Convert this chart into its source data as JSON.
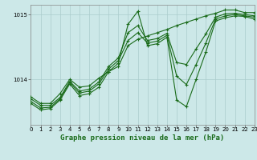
{
  "xlabel": "Graphe pression niveau de la mer (hPa)",
  "bg_color": "#cce8e8",
  "grid_color": "#aacccc",
  "line_color": "#1a6b1a",
  "ylim": [
    1013.3,
    1015.15
  ],
  "yticks": [
    1014,
    1015
  ],
  "xlim": [
    0,
    23
  ],
  "xticks": [
    0,
    1,
    2,
    3,
    4,
    5,
    6,
    7,
    8,
    9,
    10,
    11,
    12,
    13,
    14,
    15,
    16,
    17,
    18,
    19,
    20,
    21,
    22,
    23
  ],
  "series": [
    [
      1013.73,
      1013.63,
      1013.63,
      1013.78,
      1014.0,
      1013.88,
      1013.9,
      1014.02,
      1014.12,
      1014.2,
      1014.52,
      1014.62,
      1014.67,
      1014.72,
      1014.77,
      1014.83,
      1014.88,
      1014.93,
      1014.98,
      1015.02,
      1015.07,
      1015.07,
      1015.03,
      1015.03
    ],
    [
      1013.63,
      1013.53,
      1013.55,
      1013.68,
      1013.93,
      1013.75,
      1013.78,
      1013.88,
      1014.12,
      1014.25,
      1014.85,
      1015.05,
      1014.52,
      1014.55,
      1014.65,
      1013.68,
      1013.58,
      1014.0,
      1014.42,
      1014.9,
      1014.95,
      1014.98,
      1014.97,
      1014.93
    ],
    [
      1013.7,
      1013.6,
      1013.6,
      1013.72,
      1013.97,
      1013.82,
      1013.85,
      1013.96,
      1014.2,
      1014.33,
      1014.72,
      1014.83,
      1014.6,
      1014.63,
      1014.71,
      1014.26,
      1014.23,
      1014.47,
      1014.7,
      1014.96,
      1015.01,
      1015.02,
      1015.0,
      1014.98
    ],
    [
      1013.66,
      1013.56,
      1013.57,
      1013.7,
      1013.95,
      1013.79,
      1013.82,
      1013.93,
      1014.16,
      1014.29,
      1014.6,
      1014.72,
      1014.56,
      1014.59,
      1014.68,
      1014.05,
      1013.92,
      1014.23,
      1014.56,
      1014.93,
      1014.98,
      1015.0,
      1014.98,
      1014.96
    ]
  ]
}
